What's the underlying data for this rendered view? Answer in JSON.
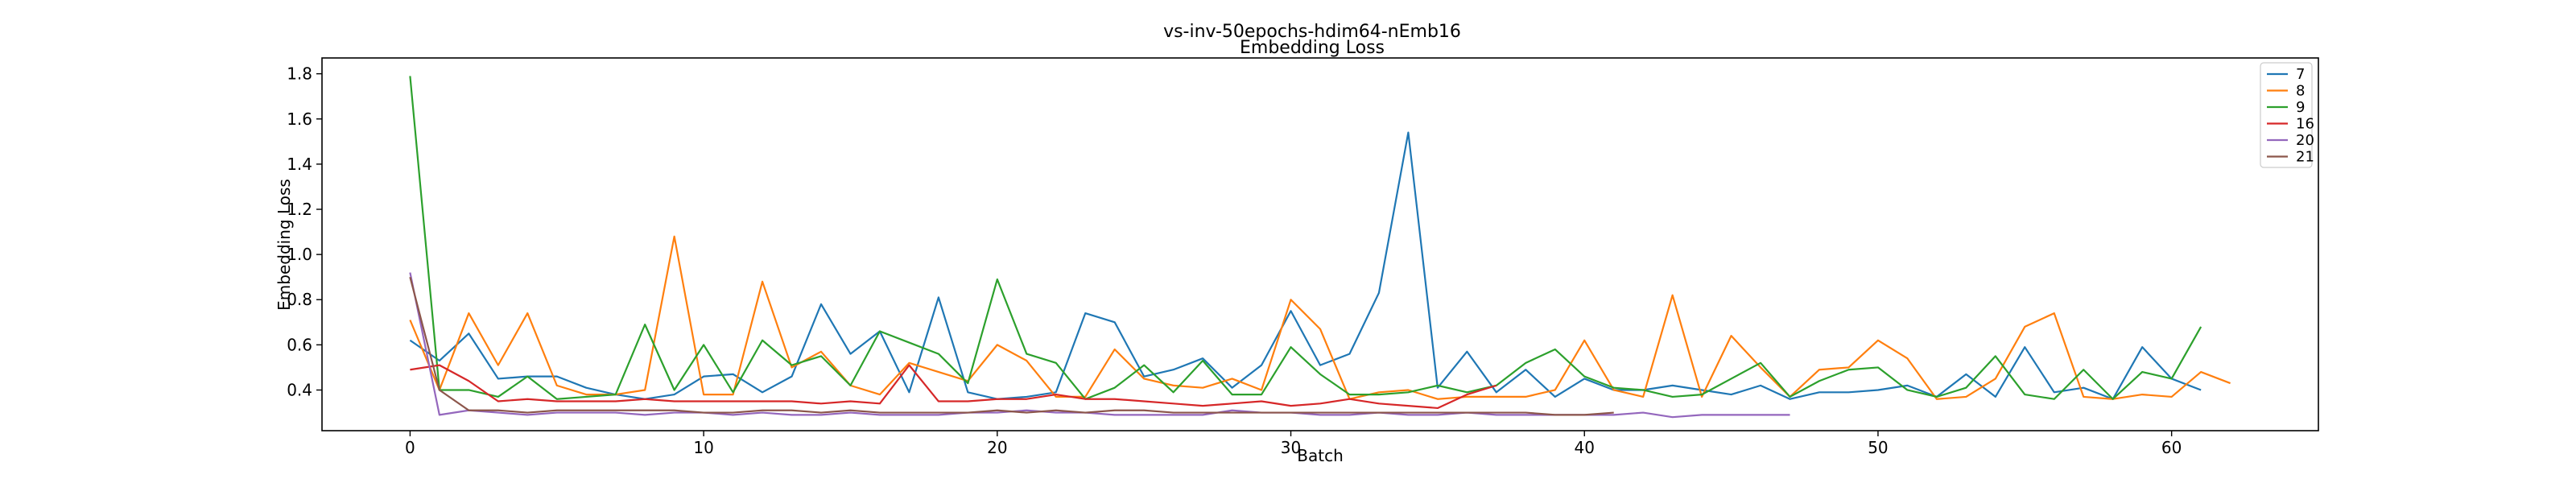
{
  "chart_data": {
    "type": "line",
    "title": "vs-inv-50epochs-hdim64-nEmb16",
    "subtitle": "Embedding Loss",
    "xlabel": "Batch",
    "ylabel": "Embedding Loss",
    "xlim": [
      -3,
      65
    ],
    "ylim": [
      0.22,
      1.87
    ],
    "xticks": [
      0,
      10,
      20,
      30,
      40,
      50,
      60
    ],
    "yticks": [
      0.4,
      0.6,
      0.8,
      1.0,
      1.2,
      1.4,
      1.6,
      1.8
    ],
    "ytick_labels": [
      "0.4",
      "0.6",
      "0.8",
      "1.0",
      "1.2",
      "1.4",
      "1.6",
      "1.8"
    ],
    "grid": false,
    "legend_position": "top-right",
    "series": [
      {
        "name": "7",
        "color": "#1f77b4",
        "values": [
          0.62,
          0.53,
          0.65,
          0.45,
          0.46,
          0.46,
          0.41,
          0.38,
          0.36,
          0.38,
          0.46,
          0.47,
          0.39,
          0.46,
          0.78,
          0.56,
          0.66,
          0.39,
          0.81,
          0.39,
          0.36,
          0.37,
          0.39,
          0.74,
          0.7,
          0.46,
          0.49,
          0.54,
          0.41,
          0.51,
          0.75,
          0.51,
          0.56,
          0.83,
          1.54,
          0.41,
          0.57,
          0.39,
          0.49,
          0.37,
          0.45,
          0.4,
          0.4,
          0.42,
          0.4,
          0.38,
          0.42,
          0.36,
          0.39,
          0.39,
          0.4,
          0.42,
          0.37,
          0.47,
          0.37,
          0.59,
          0.39,
          0.41,
          0.36,
          0.59,
          0.45,
          0.4
        ]
      },
      {
        "name": "8",
        "color": "#ff7f0e",
        "values": [
          0.71,
          0.4,
          0.74,
          0.51,
          0.74,
          0.42,
          0.38,
          0.38,
          0.4,
          1.08,
          0.38,
          0.38,
          0.88,
          0.5,
          0.57,
          0.42,
          0.38,
          0.52,
          0.48,
          0.44,
          0.6,
          0.53,
          0.37,
          0.37,
          0.58,
          0.45,
          0.42,
          0.41,
          0.45,
          0.4,
          0.8,
          0.67,
          0.36,
          0.39,
          0.4,
          0.36,
          0.37,
          0.37,
          0.37,
          0.4,
          0.62,
          0.4,
          0.37,
          0.82,
          0.37,
          0.64,
          0.5,
          0.37,
          0.49,
          0.5,
          0.62,
          0.54,
          0.36,
          0.37,
          0.45,
          0.68,
          0.74,
          0.37,
          0.36,
          0.38,
          0.37,
          0.48,
          0.43
        ]
      },
      {
        "name": "9",
        "color": "#2ca02c",
        "values": [
          1.79,
          0.4,
          0.4,
          0.37,
          0.46,
          0.36,
          0.37,
          0.38,
          0.69,
          0.4,
          0.6,
          0.39,
          0.62,
          0.51,
          0.55,
          0.42,
          0.66,
          0.61,
          0.56,
          0.43,
          0.89,
          0.56,
          0.52,
          0.36,
          0.41,
          0.51,
          0.39,
          0.53,
          0.38,
          0.38,
          0.59,
          0.47,
          0.38,
          0.38,
          0.39,
          0.42,
          0.39,
          0.42,
          0.52,
          0.58,
          0.46,
          0.41,
          0.4,
          0.37,
          0.38,
          0.45,
          0.52,
          0.37,
          0.44,
          0.49,
          0.5,
          0.4,
          0.37,
          0.41,
          0.55,
          0.38,
          0.36,
          0.49,
          0.36,
          0.48,
          0.45,
          0.68
        ]
      },
      {
        "name": "16",
        "color": "#d62728",
        "values": [
          0.49,
          0.51,
          0.44,
          0.35,
          0.36,
          0.35,
          0.35,
          0.35,
          0.36,
          0.35,
          0.35,
          0.35,
          0.35,
          0.35,
          0.34,
          0.35,
          0.34,
          0.51,
          0.35,
          0.35,
          0.36,
          0.36,
          0.38,
          0.36,
          0.36,
          0.35,
          0.34,
          0.33,
          0.34,
          0.35,
          0.33,
          0.34,
          0.36,
          0.34,
          0.33,
          0.32,
          0.38,
          0.42
        ]
      },
      {
        "name": "20",
        "color": "#9467bd",
        "values": [
          0.92,
          0.29,
          0.31,
          0.3,
          0.29,
          0.3,
          0.3,
          0.3,
          0.29,
          0.3,
          0.3,
          0.29,
          0.3,
          0.29,
          0.29,
          0.3,
          0.29,
          0.29,
          0.29,
          0.3,
          0.3,
          0.31,
          0.3,
          0.3,
          0.29,
          0.29,
          0.29,
          0.29,
          0.31,
          0.3,
          0.3,
          0.29,
          0.29,
          0.3,
          0.29,
          0.29,
          0.3,
          0.29,
          0.29,
          0.29,
          0.29,
          0.29,
          0.3,
          0.28,
          0.29,
          0.29,
          0.29,
          0.29
        ]
      },
      {
        "name": "21",
        "color": "#8c564b",
        "values": [
          0.9,
          0.4,
          0.31,
          0.31,
          0.3,
          0.31,
          0.31,
          0.31,
          0.31,
          0.31,
          0.3,
          0.3,
          0.31,
          0.31,
          0.3,
          0.31,
          0.3,
          0.3,
          0.3,
          0.3,
          0.31,
          0.3,
          0.31,
          0.3,
          0.31,
          0.31,
          0.3,
          0.3,
          0.3,
          0.3,
          0.3,
          0.3,
          0.3,
          0.3,
          0.3,
          0.3,
          0.3,
          0.3,
          0.3,
          0.29,
          0.29,
          0.3
        ]
      }
    ]
  }
}
